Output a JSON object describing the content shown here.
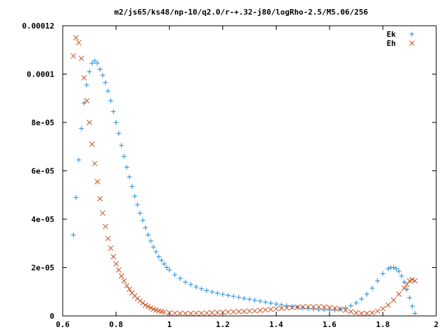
{
  "chart_data": {
    "type": "scatter",
    "title": "m2/js65/ks48/np-10/q2.0/r-+.32-j80/logRho-2.5/M5.06/256",
    "xlabel": "",
    "ylabel": "",
    "xlim": [
      0.6,
      2.0
    ],
    "ylim": [
      0,
      0.00012
    ],
    "xticks": [
      {
        "value": 0.6,
        "label": "0.6"
      },
      {
        "value": 0.8,
        "label": "0.8"
      },
      {
        "value": 1.0,
        "label": "1"
      },
      {
        "value": 1.2,
        "label": "1.2"
      },
      {
        "value": 1.4,
        "label": "1.4"
      },
      {
        "value": 1.6,
        "label": "1.6"
      },
      {
        "value": 1.8,
        "label": "1.8"
      },
      {
        "value": 2.0,
        "label": "2"
      }
    ],
    "yticks": [
      {
        "value": 0,
        "label": "0"
      },
      {
        "value": 2e-05,
        "label": "2e-05"
      },
      {
        "value": 4e-05,
        "label": "4e-05"
      },
      {
        "value": 6e-05,
        "label": "6e-05"
      },
      {
        "value": 8e-05,
        "label": "8e-05"
      },
      {
        "value": 0.0001,
        "label": "0.0001"
      },
      {
        "value": 0.00012,
        "label": "0.00012"
      }
    ],
    "grid": false,
    "legend_position": "top-right",
    "series": [
      {
        "name": "Ek",
        "marker": "+",
        "color": "#1f8ad8",
        "points": [
          [
            0.64,
            3.35e-05
          ],
          [
            0.65,
            4.9e-05
          ],
          [
            0.66,
            6.45e-05
          ],
          [
            0.67,
            7.75e-05
          ],
          [
            0.68,
            8.8e-05
          ],
          [
            0.69,
            9.55e-05
          ],
          [
            0.7,
            0.000101
          ],
          [
            0.71,
            0.0001045
          ],
          [
            0.72,
            0.0001055
          ],
          [
            0.73,
            0.0001045
          ],
          [
            0.74,
            0.000102
          ],
          [
            0.75,
            9.95e-05
          ],
          [
            0.76,
            9.65e-05
          ],
          [
            0.77,
            9.3e-05
          ],
          [
            0.78,
            8.9e-05
          ],
          [
            0.79,
            8.45e-05
          ],
          [
            0.8,
            8e-05
          ],
          [
            0.81,
            7.55e-05
          ],
          [
            0.82,
            7.05e-05
          ],
          [
            0.83,
            6.6e-05
          ],
          [
            0.84,
            6.15e-05
          ],
          [
            0.85,
            5.75e-05
          ],
          [
            0.86,
            5.35e-05
          ],
          [
            0.87,
            4.95e-05
          ],
          [
            0.88,
            4.6e-05
          ],
          [
            0.89,
            4.25e-05
          ],
          [
            0.9,
            3.95e-05
          ],
          [
            0.91,
            3.65e-05
          ],
          [
            0.92,
            3.35e-05
          ],
          [
            0.93,
            3.1e-05
          ],
          [
            0.94,
            2.85e-05
          ],
          [
            0.95,
            2.65e-05
          ],
          [
            0.96,
            2.45e-05
          ],
          [
            0.97,
            2.3e-05
          ],
          [
            0.98,
            2.15e-05
          ],
          [
            0.99,
            2e-05
          ],
          [
            1.0,
            1.9e-05
          ],
          [
            1.02,
            1.7e-05
          ],
          [
            1.04,
            1.55e-05
          ],
          [
            1.06,
            1.4e-05
          ],
          [
            1.08,
            1.3e-05
          ],
          [
            1.1,
            1.2e-05
          ],
          [
            1.12,
            1.12e-05
          ],
          [
            1.14,
            1.05e-05
          ],
          [
            1.16,
            9.9e-06
          ],
          [
            1.18,
            9.4e-06
          ],
          [
            1.2,
            8.9e-06
          ],
          [
            1.22,
            8.5e-06
          ],
          [
            1.24,
            8.1e-06
          ],
          [
            1.26,
            7.7e-06
          ],
          [
            1.28,
            7.3e-06
          ],
          [
            1.3,
            6.9e-06
          ],
          [
            1.32,
            6.5e-06
          ],
          [
            1.34,
            6.1e-06
          ],
          [
            1.36,
            5.7e-06
          ],
          [
            1.38,
            5.3e-06
          ],
          [
            1.4,
            4.9e-06
          ],
          [
            1.42,
            4.6e-06
          ],
          [
            1.44,
            4.2e-06
          ],
          [
            1.46,
            3.9e-06
          ],
          [
            1.48,
            3.6e-06
          ],
          [
            1.5,
            3.3e-06
          ],
          [
            1.52,
            3e-06
          ],
          [
            1.54,
            2.8e-06
          ],
          [
            1.56,
            2.6e-06
          ],
          [
            1.58,
            2.5e-06
          ],
          [
            1.6,
            2.4e-06
          ],
          [
            1.62,
            2.5e-06
          ],
          [
            1.64,
            2.8e-06
          ],
          [
            1.66,
            3.4e-06
          ],
          [
            1.68,
            4.2e-06
          ],
          [
            1.7,
            5.4e-06
          ],
          [
            1.72,
            7e-06
          ],
          [
            1.74,
            9e-06
          ],
          [
            1.76,
            1.15e-05
          ],
          [
            1.78,
            1.45e-05
          ],
          [
            1.8,
            1.75e-05
          ],
          [
            1.82,
            1.95e-05
          ],
          [
            1.83,
            2e-05
          ],
          [
            1.84,
            2e-05
          ],
          [
            1.85,
            1.95e-05
          ],
          [
            1.86,
            1.85e-05
          ],
          [
            1.87,
            1.65e-05
          ],
          [
            1.88,
            1.4e-05
          ],
          [
            1.89,
            1.1e-05
          ],
          [
            1.9,
            7.5e-06
          ],
          [
            1.91,
            4e-06
          ],
          [
            1.92,
            1e-06
          ]
        ]
      },
      {
        "name": "Eh",
        "marker": "x",
        "color": "#c8501e",
        "points": [
          [
            0.64,
            0.0001075
          ],
          [
            0.65,
            0.000115
          ],
          [
            0.66,
            0.000113
          ],
          [
            0.67,
            0.0001065
          ],
          [
            0.68,
            9.85e-05
          ],
          [
            0.69,
            8.9e-05
          ],
          [
            0.7,
            8e-05
          ],
          [
            0.71,
            7.1e-05
          ],
          [
            0.72,
            6.3e-05
          ],
          [
            0.73,
            5.55e-05
          ],
          [
            0.74,
            4.85e-05
          ],
          [
            0.75,
            4.25e-05
          ],
          [
            0.76,
            3.7e-05
          ],
          [
            0.77,
            3.2e-05
          ],
          [
            0.78,
            2.8e-05
          ],
          [
            0.79,
            2.45e-05
          ],
          [
            0.8,
            2.15e-05
          ],
          [
            0.81,
            1.9e-05
          ],
          [
            0.82,
            1.65e-05
          ],
          [
            0.83,
            1.45e-05
          ],
          [
            0.84,
            1.25e-05
          ],
          [
            0.85,
            1.1e-05
          ],
          [
            0.86,
            9.5e-06
          ],
          [
            0.87,
            8.3e-06
          ],
          [
            0.88,
            7.2e-06
          ],
          [
            0.89,
            6.2e-06
          ],
          [
            0.9,
            5.3e-06
          ],
          [
            0.91,
            4.5e-06
          ],
          [
            0.92,
            3.9e-06
          ],
          [
            0.93,
            3.3e-06
          ],
          [
            0.94,
            2.8e-06
          ],
          [
            0.95,
            2.4e-06
          ],
          [
            0.96,
            2.1e-06
          ],
          [
            0.97,
            1.8e-06
          ],
          [
            0.98,
            1.6e-06
          ],
          [
            1.0,
            1.3e-06
          ],
          [
            1.02,
            1.1e-06
          ],
          [
            1.04,
            1e-06
          ],
          [
            1.06,
            1e-06
          ],
          [
            1.08,
            1e-06
          ],
          [
            1.1,
            1.1e-06
          ],
          [
            1.12,
            1.1e-06
          ],
          [
            1.14,
            1.2e-06
          ],
          [
            1.16,
            1.3e-06
          ],
          [
            1.18,
            1.4e-06
          ],
          [
            1.2,
            1.5e-06
          ],
          [
            1.22,
            1.6e-06
          ],
          [
            1.24,
            1.7e-06
          ],
          [
            1.26,
            1.8e-06
          ],
          [
            1.28,
            1.9e-06
          ],
          [
            1.3,
            2e-06
          ],
          [
            1.32,
            2.1e-06
          ],
          [
            1.34,
            2.3e-06
          ],
          [
            1.36,
            2.5e-06
          ],
          [
            1.38,
            2.7e-06
          ],
          [
            1.4,
            2.9e-06
          ],
          [
            1.42,
            3.1e-06
          ],
          [
            1.44,
            3.3e-06
          ],
          [
            1.46,
            3.5e-06
          ],
          [
            1.48,
            3.6e-06
          ],
          [
            1.5,
            3.7e-06
          ],
          [
            1.52,
            3.8e-06
          ],
          [
            1.54,
            3.8e-06
          ],
          [
            1.56,
            3.8e-06
          ],
          [
            1.58,
            3.7e-06
          ],
          [
            1.6,
            3.5e-06
          ],
          [
            1.62,
            3.2e-06
          ],
          [
            1.64,
            2.8e-06
          ],
          [
            1.66,
            2.3e-06
          ],
          [
            1.68,
            1.8e-06
          ],
          [
            1.7,
            1.3e-06
          ],
          [
            1.72,
            1e-06
          ],
          [
            1.74,
            1e-06
          ],
          [
            1.76,
            1.3e-06
          ],
          [
            1.78,
            2e-06
          ],
          [
            1.8,
            3e-06
          ],
          [
            1.82,
            4.5e-06
          ],
          [
            1.84,
            6.5e-06
          ],
          [
            1.86,
            9e-06
          ],
          [
            1.88,
            1.15e-05
          ],
          [
            1.89,
            1.3e-05
          ],
          [
            1.9,
            1.45e-05
          ],
          [
            1.91,
            1.5e-05
          ],
          [
            1.92,
            1.45e-05
          ]
        ]
      }
    ]
  }
}
